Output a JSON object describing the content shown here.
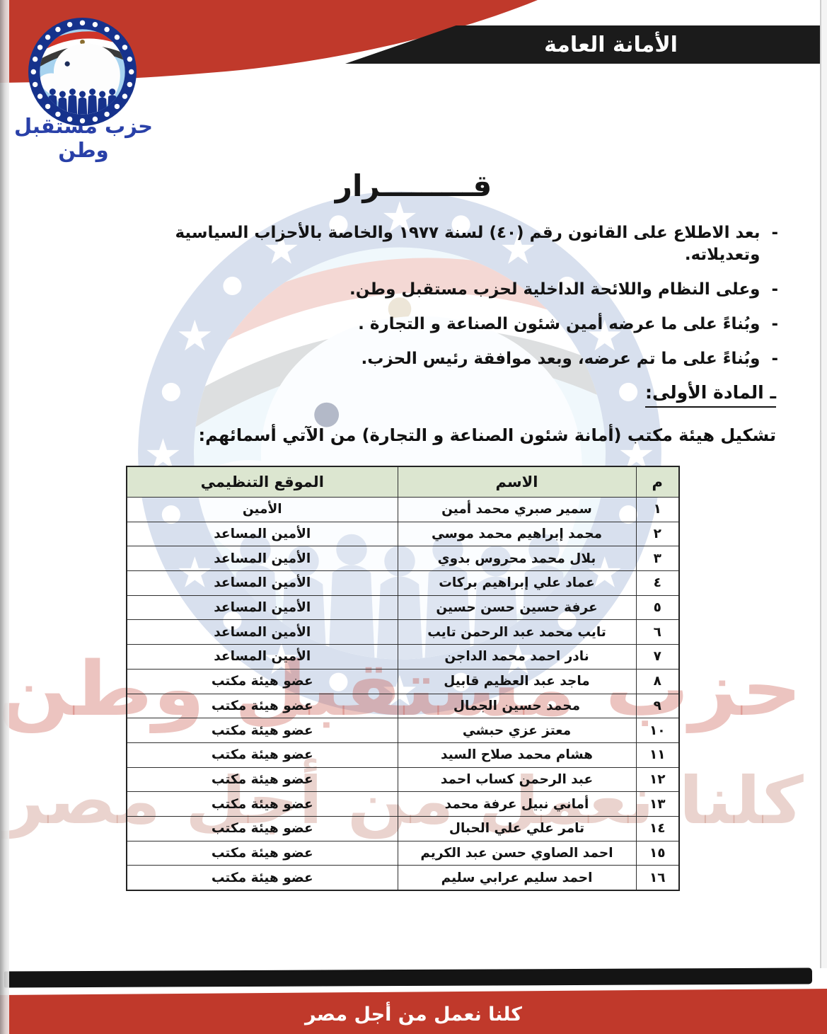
{
  "colors": {
    "red": "#c0392b",
    "banner_black": "#1b1b1b",
    "table_header_bg": "#dce6d0",
    "logo_ring_blue": "#16328c",
    "logo_text_blue": "#2940a8",
    "watermark_red": "rgba(197,77,63,0.33)"
  },
  "header": {
    "banner_title": "الأمانة العامة",
    "logo_caption": "حزب مستقبل وطن"
  },
  "decision": {
    "title": "قـــــــــرار",
    "bullet_marker": "-",
    "bullets": [
      "بعد الاطلاع على القانون رقم (٤٠) لسنة ١٩٧٧ والخاصة بالأحزاب السياسية وتعديلاته.",
      "وعلى النظام واللائحة الداخلية لحزب مستقبل وطن.",
      "وبُناءً على ما عرضه أمين شئون الصناعة و التجارة .",
      "وبُناءً على ما تم عرضه، وبعد موافقة رئيس الحزب."
    ],
    "article_heading": "ـ المادة الأولى:",
    "article_intro": "تشكيل هيئة مكتب (أمانة شئون الصناعة و التجارة) من الآتي أسمائهم:"
  },
  "table": {
    "headers": {
      "num": "م",
      "name": "الاسم",
      "position": "الموقع التنظيمي"
    },
    "rows": [
      {
        "num": "١",
        "name": "سمير صبري محمد أمين",
        "position": "الأمين"
      },
      {
        "num": "٢",
        "name": "محمد إبراهيم محمد موسي",
        "position": "الأمين المساعد"
      },
      {
        "num": "٣",
        "name": "بلال محمد محروس بدوي",
        "position": "الأمين المساعد"
      },
      {
        "num": "٤",
        "name": "عماد علي إبراهيم بركات",
        "position": "الأمين المساعد"
      },
      {
        "num": "٥",
        "name": "عرفة حسين حسن حسين",
        "position": "الأمين المساعد"
      },
      {
        "num": "٦",
        "name": "تايب محمد عبد الرحمن تايب",
        "position": "الأمين المساعد"
      },
      {
        "num": "٧",
        "name": "نادر احمد محمد الداجن",
        "position": "الأمين المساعد"
      },
      {
        "num": "٨",
        "name": "ماجد عبد العظيم قابيل",
        "position": "عضو هيئة مكتب"
      },
      {
        "num": "٩",
        "name": "محمد حسين الجمال",
        "position": "عضو هيئة مكتب"
      },
      {
        "num": "١٠",
        "name": "معتز عزي حبشي",
        "position": "عضو هيئة مكتب"
      },
      {
        "num": "١١",
        "name": "هشام محمد صلاح السيد",
        "position": "عضو هيئة مكتب"
      },
      {
        "num": "١٢",
        "name": "عبد الرحمن كساب احمد",
        "position": "عضو هيئة مكتب"
      },
      {
        "num": "١٣",
        "name": "أماني نبيل عرفة محمد",
        "position": "عضو هيئة مكتب"
      },
      {
        "num": "١٤",
        "name": "تامر علي علي الحبال",
        "position": "عضو هيئة مكتب"
      },
      {
        "num": "١٥",
        "name": "احمد الصاوي حسن عبد الكريم",
        "position": "عضو هيئة مكتب"
      },
      {
        "num": "١٦",
        "name": "احمد سليم عرابي سليم",
        "position": "عضو هيئة مكتب"
      }
    ]
  },
  "watermark": {
    "line1": "حزب مستقبل وطن",
    "line2": "كلنا نعمل من أجل مصر"
  },
  "footer": {
    "slogan": "كلنا نعمل من أجل مصر"
  }
}
